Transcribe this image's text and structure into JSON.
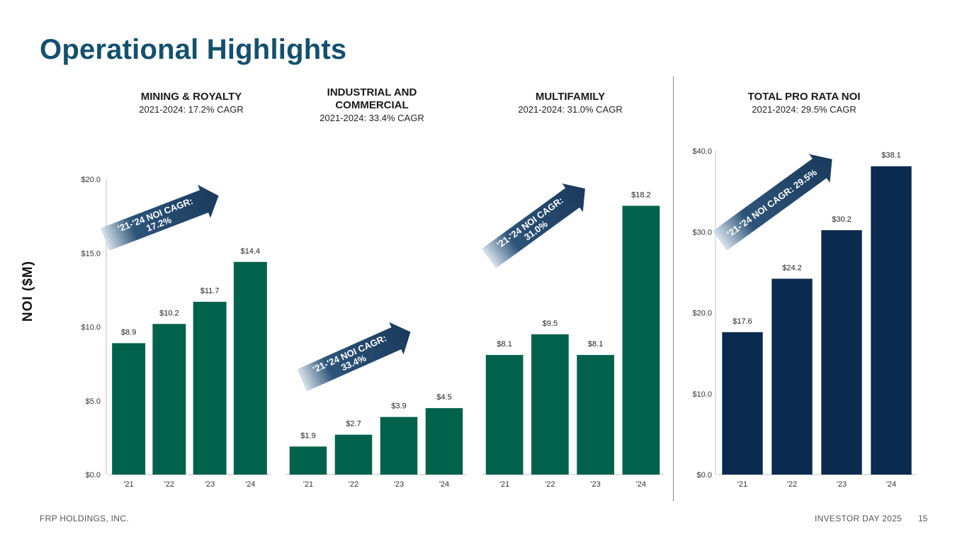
{
  "title": "Operational Highlights",
  "y_axis_title": "NOI ($M)",
  "footer": {
    "company": "FRP HOLDINGS, INC.",
    "event": "INVESTOR DAY 2025",
    "page": "15"
  },
  "colors": {
    "green": "#00624b",
    "navy": "#0b2a4f",
    "title": "#14506e",
    "arrow": "#1a3a5c"
  },
  "segments": [
    {
      "heading": "MINING & ROYALTY",
      "subheading": "2021-2024: 17.2% CAGR"
    },
    {
      "heading": "INDUSTRIAL AND COMMERCIAL",
      "subheading": "2021-2024: 33.4% CAGR"
    },
    {
      "heading": "MULTIFAMILY",
      "subheading": "2021-2024: 31.0% CAGR"
    },
    {
      "heading": "TOTAL PRO RATA NOI",
      "subheading": "2021-2024: 29.5% CAGR"
    }
  ],
  "chart_data": [
    {
      "type": "bar",
      "group": "left-shared-axis",
      "title": "MINING & ROYALTY",
      "categories": [
        "'21",
        "'22",
        "'23",
        "'24"
      ],
      "values": [
        8.9,
        10.2,
        11.7,
        14.4
      ],
      "data_labels": [
        "$8.9",
        "$10.2",
        "$11.7",
        "$14.4"
      ],
      "ylabel": "NOI ($M)",
      "ylim": [
        0,
        20
      ],
      "yticks": [
        "$0.0",
        "$5.0",
        "$10.0",
        "$15.0",
        "$20.0"
      ],
      "color": "green",
      "annotation": "'21-'24 NOI CAGR: 17.2%",
      "annotation_lines": [
        "'21-'24 NOI CAGR:",
        "17.2%"
      ]
    },
    {
      "type": "bar",
      "group": "left-shared-axis",
      "title": "INDUSTRIAL AND COMMERCIAL",
      "categories": [
        "'21",
        "'22",
        "'23",
        "'24"
      ],
      "values": [
        1.9,
        2.7,
        3.9,
        4.5
      ],
      "data_labels": [
        "$1.9",
        "$2.7",
        "$3.9",
        "$4.5"
      ],
      "ylim": [
        0,
        20
      ],
      "color": "green",
      "annotation": "'21-'24 NOI CAGR: 33.4%",
      "annotation_lines": [
        "'21-'24 NOI CAGR:",
        "33.4%"
      ]
    },
    {
      "type": "bar",
      "group": "left-shared-axis",
      "title": "MULTIFAMILY",
      "categories": [
        "'21",
        "'22",
        "'23",
        "'24"
      ],
      "values": [
        8.1,
        9.5,
        8.1,
        18.2
      ],
      "data_labels": [
        "$8.1",
        "$9.5",
        "$8.1",
        "$18.2"
      ],
      "ylim": [
        0,
        20
      ],
      "color": "green",
      "annotation": "'21-'24 NOI CAGR: 31.0%",
      "annotation_lines": [
        "'21-'24 NOI CAGR:",
        "31.0%"
      ]
    },
    {
      "type": "bar",
      "group": "right",
      "title": "TOTAL PRO RATA NOI",
      "categories": [
        "'21",
        "'22",
        "'23",
        "'24"
      ],
      "values": [
        17.6,
        24.2,
        30.2,
        38.1
      ],
      "data_labels": [
        "$17.6",
        "$24.2",
        "$30.2",
        "$38.1"
      ],
      "ylim": [
        0,
        40
      ],
      "yticks": [
        "$0.0",
        "$10.0",
        "$20.0",
        "$30.0",
        "$40.0"
      ],
      "color": "navy",
      "annotation": "'21-'24 NOI CAGR: 29.5%",
      "annotation_lines": [
        "'21-'24 NOI CAGR: 29.5%"
      ]
    }
  ]
}
